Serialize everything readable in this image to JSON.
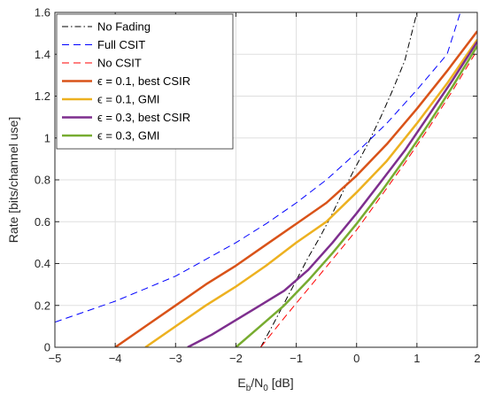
{
  "chart_data": {
    "type": "line",
    "xlabel": "E_b/N_0 [dB]",
    "xlabel_parts": {
      "main": "E",
      "sub1": "b",
      "slash": "/N",
      "sub2": "0",
      "unit": " [dB]"
    },
    "ylabel": "Rate [bits/channel use]",
    "xlim": [
      -5,
      2
    ],
    "ylim": [
      0,
      1.6
    ],
    "xticks": [
      -5,
      -4,
      -3,
      -2,
      -1,
      0,
      1,
      2
    ],
    "xtick_labels": [
      "−5",
      "−4",
      "−3",
      "−2",
      "−1",
      "0",
      "1",
      "2"
    ],
    "yticks": [
      0,
      0.2,
      0.4,
      0.6,
      0.8,
      1,
      1.2,
      1.4,
      1.6
    ],
    "ytick_labels": [
      "0",
      "0.2",
      "0.4",
      "0.6",
      "0.8",
      "1",
      "1.2",
      "1.4",
      "1.6"
    ],
    "grid": true,
    "legend_position": "top-left",
    "series": [
      {
        "name": "No Fading",
        "color": "#000000",
        "dash": "dashdot",
        "width": 1,
        "x": [
          -1.59,
          -1.4,
          -1.2,
          -1.0,
          -0.8,
          -0.6,
          -0.4,
          -0.2,
          0.0,
          0.2,
          0.4,
          0.6,
          0.8,
          1.0
        ],
        "y": [
          0.0,
          0.1,
          0.21,
          0.32,
          0.43,
          0.53,
          0.64,
          0.76,
          0.87,
          0.98,
          1.1,
          1.23,
          1.37,
          1.6
        ]
      },
      {
        "name": "Full CSIT",
        "color": "#0000ff",
        "dash": "dash",
        "width": 1,
        "x": [
          -5,
          -4.5,
          -4,
          -3.5,
          -3,
          -2.5,
          -2,
          -1.5,
          -1,
          -0.5,
          0,
          0.5,
          1,
          1.5,
          1.72
        ],
        "y": [
          0.12,
          0.17,
          0.22,
          0.28,
          0.34,
          0.42,
          0.5,
          0.59,
          0.69,
          0.8,
          0.93,
          1.07,
          1.23,
          1.4,
          1.6
        ]
      },
      {
        "name": "No CSIT",
        "color": "#ff0000",
        "dash": "dash",
        "width": 1,
        "x": [
          -1.59,
          -1.2,
          -0.8,
          -0.4,
          0.0,
          0.4,
          0.8,
          1.2,
          1.6,
          2.0
        ],
        "y": [
          0.0,
          0.14,
          0.28,
          0.42,
          0.56,
          0.72,
          0.88,
          1.05,
          1.23,
          1.42
        ]
      },
      {
        "name": "ϵ = 0.1, best CSIR",
        "color": "#d95319",
        "dash": "solid",
        "width": 2.5,
        "x": [
          -4,
          -3.5,
          -3,
          -2.5,
          -2,
          -1.5,
          -1,
          -0.5,
          0,
          0.5,
          1,
          1.5,
          2
        ],
        "y": [
          0.0,
          0.1,
          0.2,
          0.3,
          0.39,
          0.49,
          0.59,
          0.69,
          0.82,
          0.97,
          1.14,
          1.32,
          1.51
        ]
      },
      {
        "name": "ϵ = 0.1, GMI",
        "color": "#edb120",
        "dash": "solid",
        "width": 2.5,
        "x": [
          -3.5,
          -3,
          -2.5,
          -2,
          -1.5,
          -1,
          -0.5,
          0,
          0.5,
          1,
          1.5,
          2
        ],
        "y": [
          0.0,
          0.1,
          0.2,
          0.29,
          0.39,
          0.5,
          0.6,
          0.74,
          0.89,
          1.07,
          1.26,
          1.47
        ]
      },
      {
        "name": "ϵ = 0.3, best CSIR",
        "color": "#7e2f8e",
        "dash": "solid",
        "width": 2.5,
        "x": [
          -2.8,
          -2.4,
          -2,
          -1.6,
          -1.2,
          -0.8,
          -0.4,
          0,
          0.4,
          0.8,
          1.2,
          1.6,
          2
        ],
        "y": [
          0.0,
          0.06,
          0.13,
          0.2,
          0.27,
          0.37,
          0.5,
          0.64,
          0.79,
          0.94,
          1.11,
          1.28,
          1.46
        ]
      },
      {
        "name": "ϵ = 0.3, GMI",
        "color": "#77ac30",
        "dash": "solid",
        "width": 2.5,
        "x": [
          -2,
          -1.6,
          -1.2,
          -0.8,
          -0.4,
          0,
          0.4,
          0.8,
          1.2,
          1.6,
          2
        ],
        "y": [
          0.0,
          0.1,
          0.2,
          0.32,
          0.45,
          0.59,
          0.74,
          0.9,
          1.07,
          1.25,
          1.44
        ]
      }
    ]
  }
}
